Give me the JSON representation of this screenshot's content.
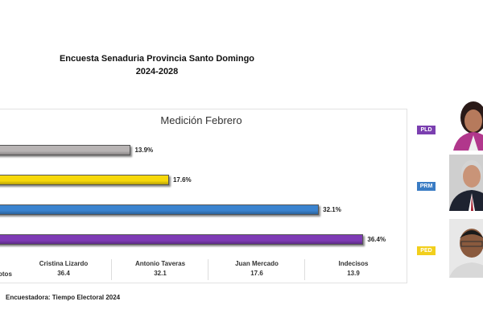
{
  "title_line1": "Encuesta Senaduria Provincia Santo Domingo",
  "title_line2": "2024-2028",
  "footer": "Encuestadora: Tiempo Electoral 2024",
  "legend_partial": "otos",
  "parties": [
    {
      "label": "PLD",
      "color": "#7b3fb0"
    },
    {
      "label": "PRM",
      "color": "#3a7cc4"
    },
    {
      "label": "PED",
      "color": "#f2cf1c"
    }
  ],
  "chart_data": {
    "type": "bar",
    "title": "Medición Febrero",
    "orientation": "horizontal",
    "categories": [
      "Indecisos",
      "Juan Mercado",
      "Antonio Taveras",
      "Cristina Lizardo"
    ],
    "values": [
      13.9,
      17.6,
      32.1,
      36.4
    ],
    "value_labels": [
      "13.9%",
      "17.6%",
      "32.1%",
      "36.4%"
    ],
    "colors": [
      "#b8b4b4",
      "#f7d80a",
      "#3a83cf",
      "#7e3bb5"
    ],
    "table": [
      {
        "name": "Cristina Lizardo",
        "value": "36.4"
      },
      {
        "name": "Antonio Taveras",
        "value": "32.1"
      },
      {
        "name": "Juan Mercado",
        "value": "17.6"
      },
      {
        "name": "Indecisos",
        "value": "13.9"
      }
    ]
  }
}
